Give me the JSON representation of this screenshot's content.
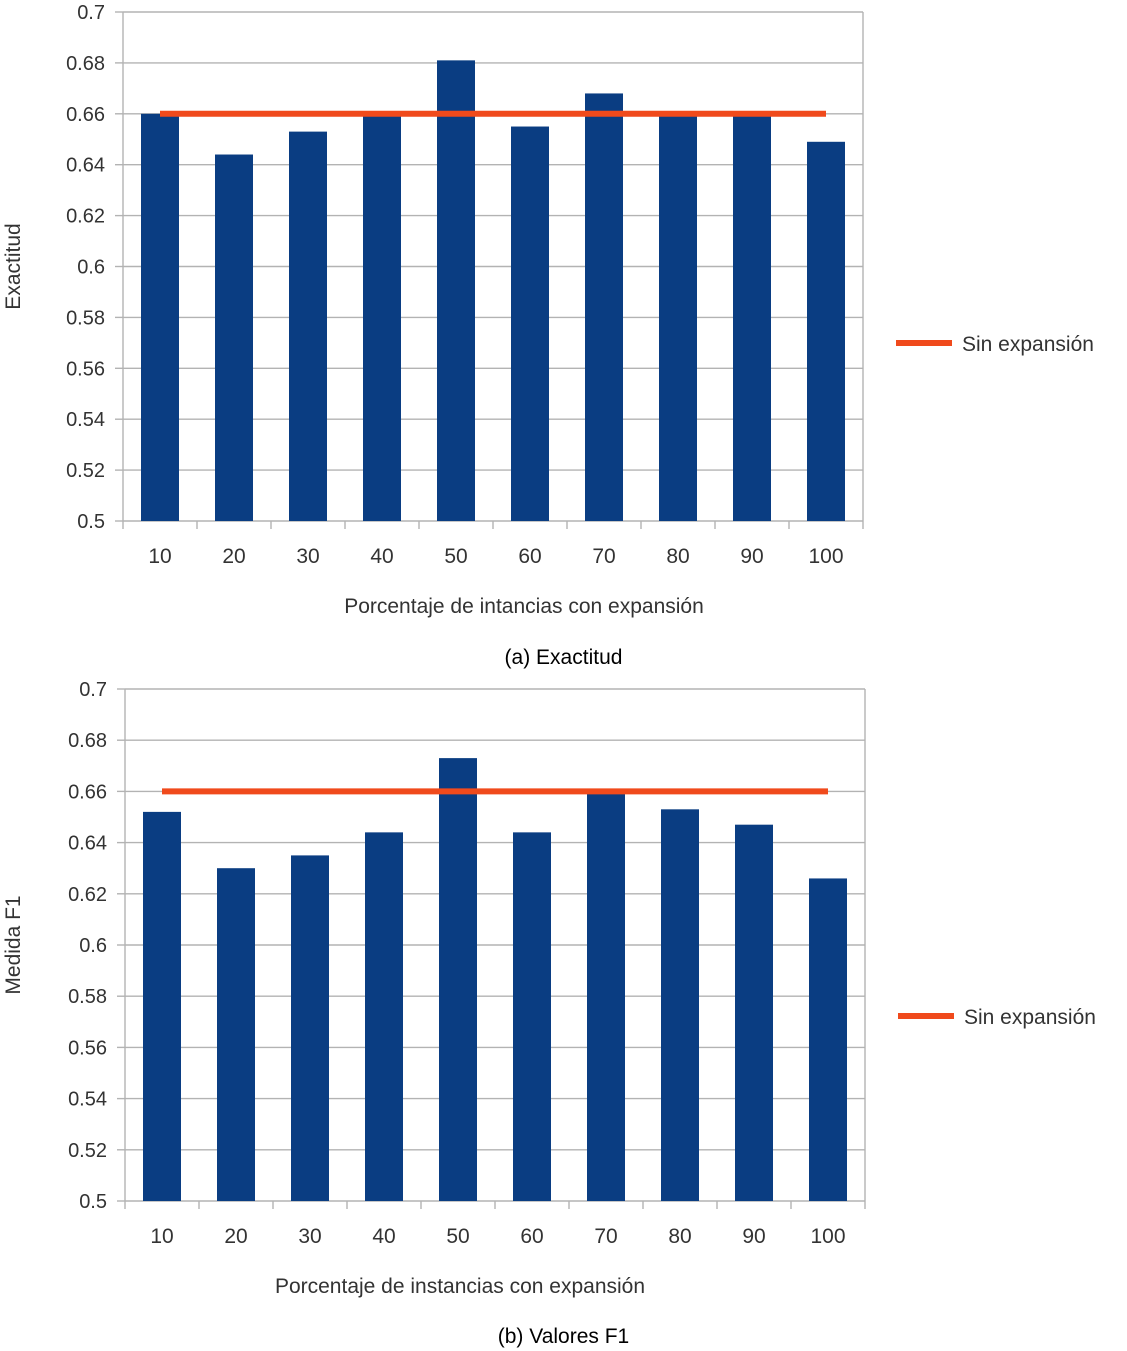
{
  "chart_data": [
    {
      "type": "bar",
      "title": "",
      "categories": [
        "10",
        "20",
        "30",
        "40",
        "50",
        "60",
        "70",
        "80",
        "90",
        "100"
      ],
      "values": [
        0.66,
        0.644,
        0.653,
        0.66,
        0.681,
        0.655,
        0.668,
        0.66,
        0.66,
        0.649
      ],
      "baseline": {
        "name": "Sin expansión",
        "value": 0.66,
        "color": "#f04a1c"
      },
      "bar_color": "#0a3d82",
      "xlabel": "Porcentaje de intancias con expansión",
      "ylabel": "Exactitud",
      "ylim": [
        0.5,
        0.7
      ],
      "yticks": [
        "0.5",
        "0.52",
        "0.54",
        "0.56",
        "0.58",
        "0.6",
        "0.62",
        "0.64",
        "0.66",
        "0.68",
        "0.7"
      ],
      "grid": true,
      "legend": "right",
      "caption": "(a) Exactitud"
    },
    {
      "type": "bar",
      "title": "",
      "categories": [
        "10",
        "20",
        "30",
        "40",
        "50",
        "60",
        "70",
        "80",
        "90",
        "100"
      ],
      "values": [
        0.652,
        0.63,
        0.635,
        0.644,
        0.673,
        0.644,
        0.66,
        0.653,
        0.647,
        0.626
      ],
      "baseline": {
        "name": "Sin expansión",
        "value": 0.66,
        "color": "#f04a1c"
      },
      "bar_color": "#0a3d82",
      "xlabel": "Porcentaje de instancias con expansión",
      "ylabel": "Medida F1",
      "ylim": [
        0.5,
        0.7
      ],
      "yticks": [
        "0.5",
        "0.52",
        "0.54",
        "0.56",
        "0.58",
        "0.6",
        "0.62",
        "0.64",
        "0.66",
        "0.68",
        "0.7"
      ],
      "grid": true,
      "legend": "right",
      "caption": "(b) Valores F1"
    }
  ]
}
